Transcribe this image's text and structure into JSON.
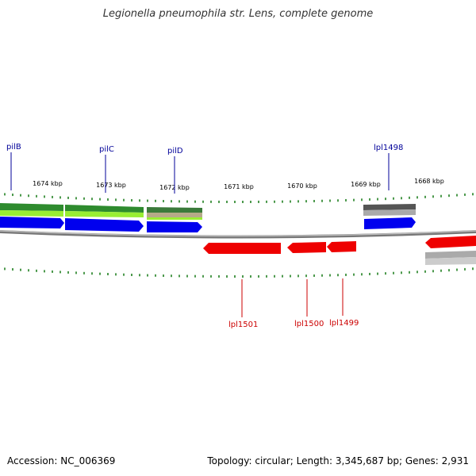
{
  "title": "Legionella pneumophila str. Lens, complete genome",
  "footer": {
    "accession": "Accession: NC_006369",
    "topology": "Topology: circular; Length: 3,345,687 bp; Genes: 2,931"
  },
  "scale": {
    "tick_labels": [
      "1674 kbp",
      "1673 kbp",
      "1672 kbp",
      "1671 kbp",
      "1670 kbp",
      "1669 kbp",
      "1668 kbp"
    ]
  },
  "colors": {
    "forward_cds": "#0000ee",
    "reverse_cds": "#ee0000",
    "backbone": "#888888",
    "ticks": "#117711",
    "forward_label": "#000099",
    "reverse_label": "#cc0000",
    "green_dark": "#2e8b2e",
    "green_light": "#99ee33",
    "gray_dark": "#666666",
    "gray_light": "#bbbbbb"
  },
  "genes": {
    "forward": [
      {
        "name": "pilB"
      },
      {
        "name": "pilC"
      },
      {
        "name": "pilD"
      },
      {
        "name": "lpl1498"
      }
    ],
    "reverse": [
      {
        "name": "lpl1501"
      },
      {
        "name": "lpl1500"
      },
      {
        "name": "lpl1499"
      }
    ]
  }
}
